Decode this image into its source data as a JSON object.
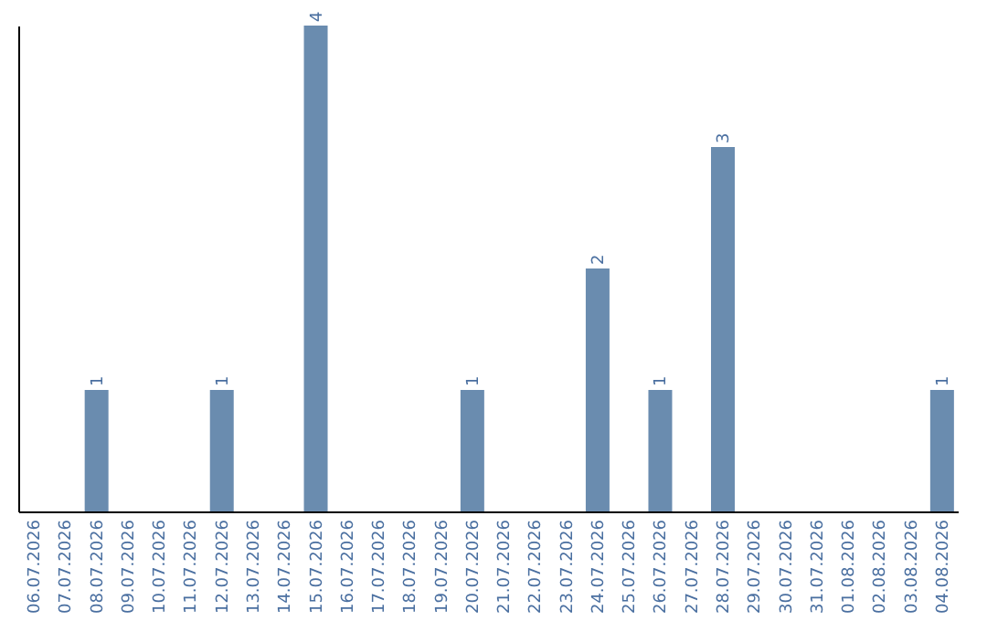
{
  "chart_data": {
    "type": "bar",
    "categories": [
      "06.07.2026",
      "07.07.2026",
      "08.07.2026",
      "09.07.2026",
      "10.07.2026",
      "11.07.2026",
      "12.07.2026",
      "13.07.2026",
      "14.07.2026",
      "15.07.2026",
      "16.07.2026",
      "17.07.2026",
      "18.07.2026",
      "19.07.2026",
      "20.07.2026",
      "21.07.2026",
      "22.07.2026",
      "23.07.2026",
      "24.07.2026",
      "25.07.2026",
      "26.07.2026",
      "27.07.2026",
      "28.07.2026",
      "29.07.2026",
      "30.07.2026",
      "31.07.2026",
      "01.08.2026",
      "02.08.2026",
      "03.08.2026",
      "04.08.2026"
    ],
    "values": [
      0,
      0,
      1,
      0,
      0,
      0,
      1,
      0,
      0,
      4,
      0,
      0,
      0,
      0,
      1,
      0,
      0,
      0,
      2,
      0,
      1,
      0,
      3,
      0,
      0,
      0,
      0,
      0,
      0,
      1
    ],
    "value_labels": [
      null,
      null,
      "1",
      null,
      null,
      null,
      "1",
      null,
      null,
      "4",
      null,
      null,
      null,
      null,
      "1",
      null,
      null,
      null,
      "2",
      null,
      "1",
      null,
      "3",
      null,
      null,
      null,
      null,
      null,
      null,
      "1"
    ],
    "color": "#6a8caf",
    "grid": false,
    "tick_labels": "x"
  }
}
